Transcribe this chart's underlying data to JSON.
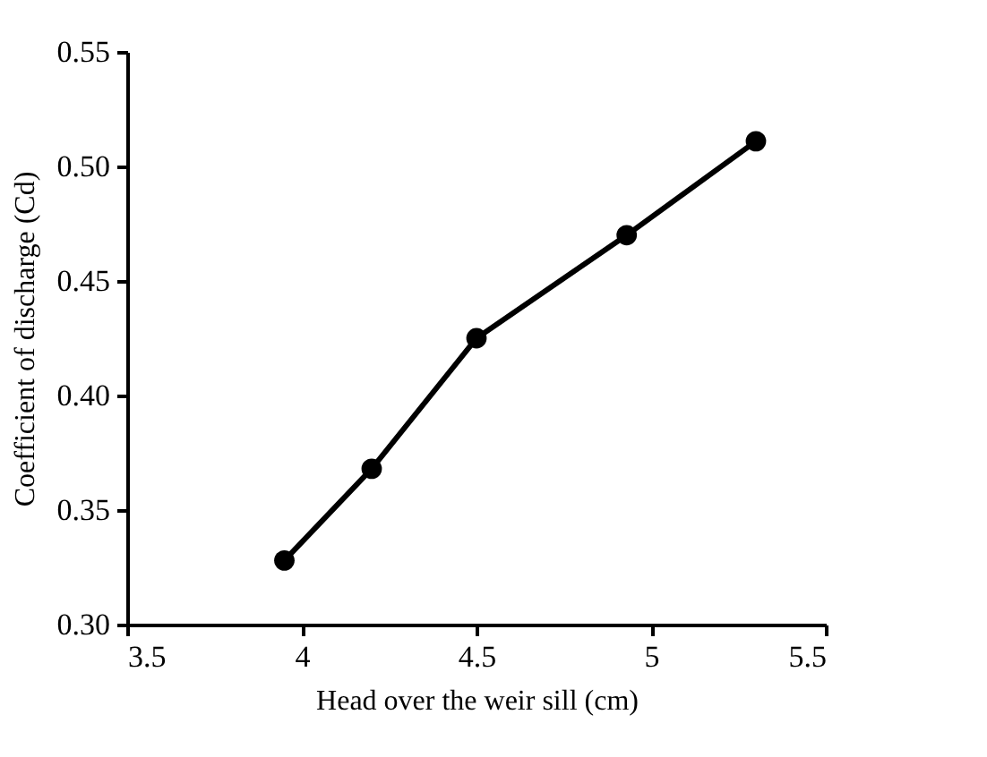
{
  "chart_data": {
    "type": "line",
    "xlabel": "Head over the weir sill (cm)",
    "ylabel": "Coefficient of discharge (Cd)",
    "x": [
      3.95,
      4.2,
      4.5,
      4.93,
      5.3
    ],
    "series": [
      {
        "color": "#000000",
        "values": [
          0.328,
          0.368,
          0.425,
          0.47,
          0.511
        ]
      }
    ],
    "xlim": [
      3.5,
      5.5
    ],
    "xticks": [
      3.5,
      4,
      4.5,
      5,
      5.5
    ],
    "ylim": [
      0.3,
      0.55
    ],
    "yticks": [
      {
        "value": 0.3,
        "label": "0.30"
      },
      {
        "value": 0.35,
        "label": "0.35"
      },
      {
        "value": 0.4,
        "label": "0.40"
      },
      {
        "value": 0.45,
        "label": "0.45"
      },
      {
        "value": 0.5,
        "label": "0.50"
      },
      {
        "value": 0.55,
        "label": "0.55"
      }
    ],
    "grid": false,
    "marker": "circle",
    "line_style": "solid"
  }
}
